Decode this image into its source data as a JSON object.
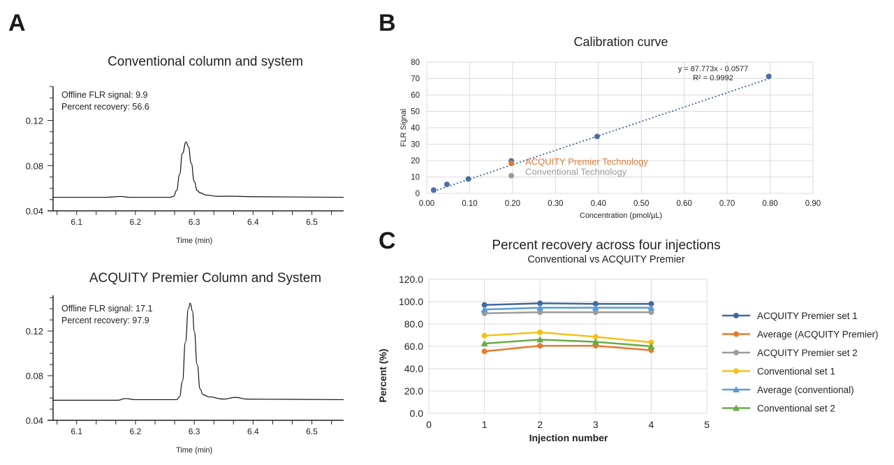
{
  "panels": {
    "a": "A",
    "b": "B",
    "c": "C"
  },
  "chart_data": [
    {
      "id": "chrom-conventional",
      "type": "line",
      "title": "Conventional column and system",
      "xlabel": "Time (min)",
      "ylabel": "",
      "xlim": [
        6.06,
        6.554
      ],
      "ylim": [
        0.04,
        0.15
      ],
      "xticks": [
        "6.1",
        "6.2",
        "6.3",
        "6.4",
        "6.5"
      ],
      "yticks": [
        "0.04",
        "0.08",
        "0.12"
      ],
      "annotations": [
        "Offline FLR signal: 9.9",
        "Percent recovery: 56.6"
      ],
      "color": "#111111",
      "x": [
        6.06,
        6.15,
        6.175,
        6.19,
        6.26,
        6.265,
        6.27,
        6.275,
        6.28,
        6.286,
        6.29,
        6.295,
        6.3,
        6.305,
        6.31,
        6.32,
        6.34,
        6.36,
        6.4,
        6.554
      ],
      "y": [
        0.052,
        0.052,
        0.0527,
        0.052,
        0.052,
        0.053,
        0.058,
        0.072,
        0.091,
        0.101,
        0.097,
        0.082,
        0.066,
        0.058,
        0.056,
        0.054,
        0.0528,
        0.053,
        0.0525,
        0.052
      ]
    },
    {
      "id": "chrom-premier",
      "type": "line",
      "title": "ACQUITY Premier Column and System",
      "xlabel": "Time (min)",
      "ylabel": "",
      "xlim": [
        6.06,
        6.554
      ],
      "ylim": [
        0.04,
        0.152
      ],
      "xticks": [
        "6.1",
        "6.2",
        "6.3",
        "6.4",
        "6.5"
      ],
      "yticks": [
        "0.04",
        "0.08",
        "0.12"
      ],
      "annotations": [
        "Offline FLR signal: 17.1",
        "Percent recovery: 97.9"
      ],
      "color": "#111111",
      "x": [
        6.06,
        6.17,
        6.183,
        6.2,
        6.27,
        6.275,
        6.28,
        6.285,
        6.29,
        6.293,
        6.297,
        6.3,
        6.305,
        6.31,
        6.315,
        6.325,
        6.35,
        6.37,
        6.39,
        6.554
      ],
      "y": [
        0.058,
        0.058,
        0.0595,
        0.0585,
        0.0585,
        0.061,
        0.075,
        0.11,
        0.14,
        0.145,
        0.138,
        0.12,
        0.09,
        0.068,
        0.063,
        0.061,
        0.059,
        0.0605,
        0.059,
        0.0585
      ]
    },
    {
      "id": "calibration",
      "type": "scatter",
      "title": "Calibration curve",
      "xlabel": "Concentration (pmol/µL)",
      "ylabel": "FLR Signal",
      "xlim": [
        0,
        0.9
      ],
      "ylim": [
        0,
        80
      ],
      "xticks": [
        "0.00",
        "0.10",
        "0.20",
        "0.30",
        "0.40",
        "0.50",
        "0.60",
        "0.70",
        "0.80",
        "0.90"
      ],
      "yticks": [
        "0",
        "10",
        "20",
        "30",
        "40",
        "50",
        "60",
        "70",
        "80"
      ],
      "grid": true,
      "series": [
        {
          "color": "#4a6fa5",
          "x": [
            0.016,
            0.047,
            0.097,
            0.197,
            0.397,
            0.797
          ],
          "y": [
            2.0,
            5.5,
            8.8,
            19.8,
            34.7,
            71.3
          ]
        },
        {
          "name": "ACQUITY Premier Technology",
          "color": "#e07b39",
          "x": [
            0.197
          ],
          "y": [
            18.3
          ]
        },
        {
          "name": "Conventional Technology",
          "color": "#9a9a9a",
          "x": [
            0.197
          ],
          "y": [
            10.8
          ]
        }
      ],
      "trendline": {
        "slope": 87.773,
        "intercept": -0.0577,
        "color": "#4a6fa5",
        "equation": "y = 87.773x - 0.0577",
        "r2": "R² = 0.9992"
      }
    },
    {
      "id": "recovery",
      "type": "line",
      "title": "Percent recovery across four injections",
      "subtitle": "Conventional vs ACQUITY Premier",
      "xlabel": "Injection number",
      "ylabel": "Percent (%)",
      "xlim": [
        0,
        5
      ],
      "ylim": [
        0,
        120
      ],
      "xticks": [
        "0",
        "1",
        "2",
        "3",
        "4",
        "5"
      ],
      "yticks": [
        "0.0",
        "20.0",
        "40.0",
        "60.0",
        "80.0",
        "100.0",
        "120.0"
      ],
      "grid": true,
      "legend": "right",
      "x": [
        1,
        2,
        3,
        4
      ],
      "series": [
        {
          "name": "ACQUITY Premier set 1",
          "color": "#41679e",
          "marker": "circle",
          "values": [
            97,
            98.5,
            98,
            98
          ]
        },
        {
          "name": "Average (ACQUITY Premier)",
          "color": "#e8792f",
          "marker": "circle",
          "values": [
            55.5,
            60.5,
            60.5,
            56.5
          ]
        },
        {
          "name": "ACQUITY Premier set 2",
          "color": "#9c9c9c",
          "marker": "circle",
          "values": [
            89.5,
            90.5,
            90.5,
            90.5
          ]
        },
        {
          "name": "Conventional set 1",
          "color": "#f5c01c",
          "marker": "circle",
          "values": [
            69.5,
            72.5,
            68.5,
            63.5
          ]
        },
        {
          "name": "Average (conventional)",
          "color": "#5b9bd5",
          "marker": "triangle",
          "values": [
            93,
            94.5,
            94.5,
            94.5
          ]
        },
        {
          "name": "Conventional set 2",
          "color": "#6aaa46",
          "marker": "triangle",
          "values": [
            62.5,
            66,
            64,
            60
          ]
        }
      ]
    }
  ]
}
